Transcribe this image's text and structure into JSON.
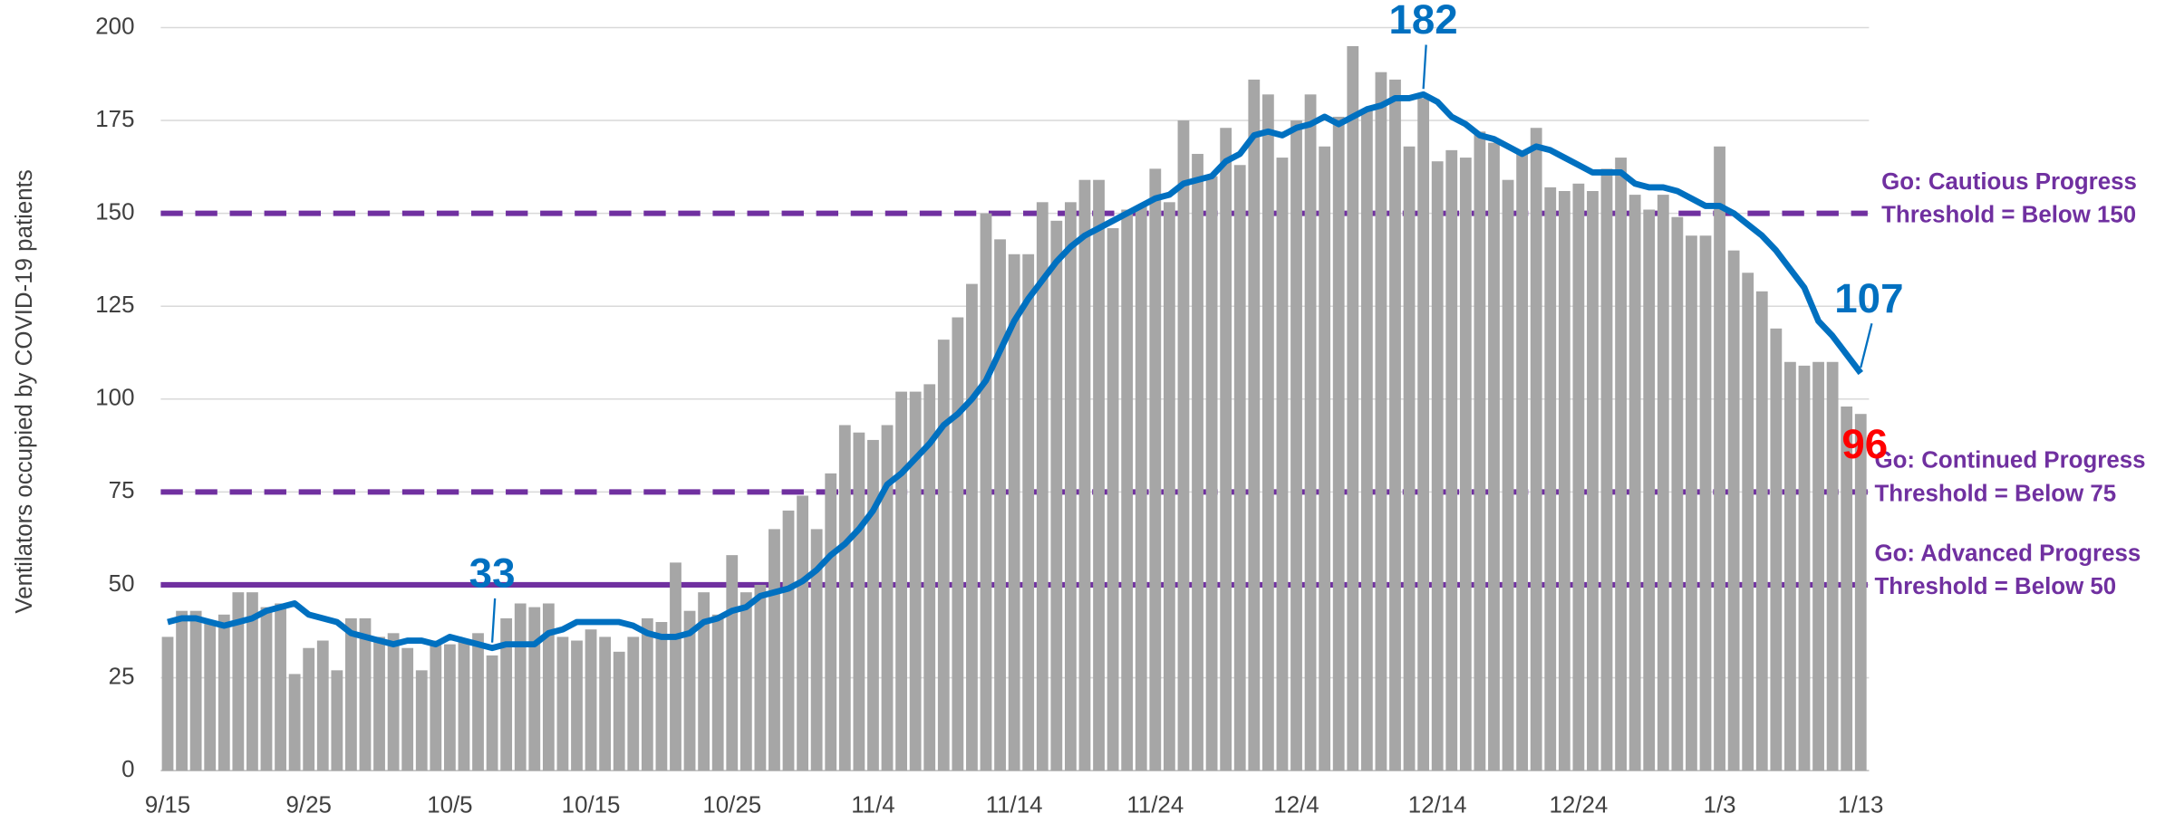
{
  "chart_data": {
    "type": "bar_line",
    "y_axis_label": "Ventilators occupied by COVID-19 patients",
    "categories": [
      "9/15",
      null,
      null,
      null,
      null,
      null,
      null,
      null,
      null,
      null,
      "9/25",
      null,
      null,
      null,
      null,
      null,
      null,
      null,
      null,
      null,
      "10/5",
      null,
      null,
      null,
      null,
      null,
      null,
      null,
      null,
      null,
      "10/15",
      null,
      null,
      null,
      null,
      null,
      null,
      null,
      null,
      null,
      "10/25",
      null,
      null,
      null,
      null,
      null,
      null,
      null,
      null,
      null,
      "11/4",
      null,
      null,
      null,
      null,
      null,
      null,
      null,
      null,
      null,
      "11/14",
      null,
      null,
      null,
      null,
      null,
      null,
      null,
      null,
      null,
      "11/24",
      null,
      null,
      null,
      null,
      null,
      null,
      null,
      null,
      null,
      "12/4",
      null,
      null,
      null,
      null,
      null,
      null,
      null,
      null,
      null,
      "12/14",
      null,
      null,
      null,
      null,
      null,
      null,
      null,
      null,
      null,
      "12/24",
      null,
      null,
      null,
      null,
      null,
      null,
      null,
      null,
      null,
      "1/3",
      null,
      null,
      null,
      null,
      null,
      null,
      null,
      null,
      null,
      "1/13"
    ],
    "series": [
      {
        "kind": "bar",
        "color": "#a6a6a6",
        "values": [
          36,
          43,
          43,
          40,
          42,
          48,
          48,
          44,
          45,
          26,
          33,
          35,
          27,
          41,
          41,
          36,
          37,
          33,
          27,
          35,
          34,
          35,
          37,
          31,
          41,
          45,
          44,
          45,
          36,
          35,
          38,
          36,
          32,
          36,
          41,
          40,
          56,
          43,
          48,
          42,
          58,
          48,
          50,
          65,
          70,
          74,
          65,
          80,
          93,
          91,
          89,
          93,
          102,
          102,
          104,
          116,
          122,
          131,
          150,
          143,
          139,
          139,
          153,
          148,
          153,
          159,
          159,
          146,
          151,
          152,
          162,
          153,
          175,
          166,
          160,
          173,
          163,
          186,
          182,
          165,
          175,
          182,
          168,
          176,
          195,
          178,
          188,
          186,
          168,
          181,
          164,
          167,
          165,
          172,
          169,
          159,
          166,
          173,
          157,
          156,
          158,
          156,
          162,
          165,
          155,
          151,
          155,
          149,
          144,
          144,
          168,
          140,
          134,
          129,
          119,
          110,
          109,
          110,
          110,
          98,
          96
        ],
        "value_labels": [
          null,
          null,
          null,
          null,
          null,
          null,
          null,
          null,
          null,
          null,
          null,
          null,
          null,
          null,
          null,
          null,
          null,
          null,
          null,
          null,
          null,
          null,
          null,
          null,
          null,
          null,
          null,
          null,
          null,
          null,
          null,
          null,
          null,
          null,
          null,
          null,
          null,
          null,
          null,
          null,
          null,
          null,
          null,
          null,
          null,
          null,
          null,
          null,
          null,
          null,
          null,
          null,
          null,
          null,
          null,
          null,
          null,
          null,
          null,
          null,
          null,
          null,
          null,
          null,
          null,
          null,
          null,
          null,
          null,
          null,
          null,
          null,
          null,
          null,
          null,
          null,
          null,
          null,
          null,
          null,
          null,
          null,
          null,
          null,
          null,
          null,
          null,
          null,
          null,
          null,
          null,
          null,
          null,
          null,
          null,
          null,
          null,
          null,
          null,
          null,
          null,
          null,
          null,
          null,
          null,
          null,
          null,
          null,
          null,
          null,
          null,
          null,
          null,
          null,
          null,
          null,
          null,
          null,
          null,
          null,
          "96"
        ],
        "label_color": "#ff0000"
      },
      {
        "kind": "line",
        "color": "#0070c0",
        "values": [
          40,
          41,
          41,
          40,
          39,
          40,
          41,
          43,
          44,
          45,
          42,
          41,
          40,
          37,
          36,
          35,
          34,
          35,
          35,
          34,
          36,
          35,
          34,
          33,
          34,
          34,
          34,
          37,
          38,
          40,
          40,
          40,
          40,
          39,
          37,
          36,
          36,
          37,
          40,
          41,
          43,
          44,
          47,
          48,
          49,
          51,
          54,
          58,
          61,
          65,
          70,
          77,
          80,
          84,
          88,
          93,
          96,
          100,
          105,
          113,
          121,
          127,
          132,
          137,
          141,
          144,
          146,
          148,
          150,
          152,
          154,
          155,
          158,
          159,
          160,
          164,
          166,
          171,
          172,
          171,
          173,
          174,
          176,
          174,
          176,
          178,
          179,
          181,
          181,
          182,
          180,
          176,
          174,
          171,
          170,
          168,
          166,
          168,
          167,
          165,
          163,
          161,
          161,
          161,
          158,
          157,
          157,
          156,
          154,
          152,
          152,
          150,
          147,
          144,
          140,
          135,
          130,
          121,
          117,
          112,
          107
        ],
        "value_labels": [
          null,
          null,
          null,
          null,
          null,
          null,
          null,
          null,
          null,
          null,
          null,
          null,
          null,
          null,
          null,
          null,
          null,
          null,
          null,
          null,
          null,
          null,
          null,
          "33",
          null,
          null,
          null,
          null,
          null,
          null,
          null,
          null,
          null,
          null,
          null,
          null,
          null,
          null,
          null,
          null,
          null,
          null,
          null,
          null,
          null,
          null,
          null,
          null,
          null,
          null,
          null,
          null,
          null,
          null,
          null,
          null,
          null,
          null,
          null,
          null,
          null,
          null,
          null,
          null,
          null,
          null,
          null,
          null,
          null,
          null,
          null,
          null,
          null,
          null,
          null,
          null,
          null,
          null,
          null,
          null,
          null,
          null,
          null,
          null,
          null,
          null,
          null,
          null,
          null,
          "182",
          null,
          null,
          null,
          null,
          null,
          null,
          null,
          null,
          null,
          null,
          null,
          null,
          null,
          null,
          null,
          null,
          null,
          null,
          null,
          null,
          null,
          null,
          null,
          null,
          null,
          null,
          null,
          null,
          null,
          null,
          "107"
        ],
        "label_color": "#0070c0"
      }
    ],
    "thresholds": [
      {
        "value": 150,
        "style": "dashed",
        "color": "#7030a0",
        "label": [
          "Go: Cautious Progress",
          "Threshold = Below 150"
        ]
      },
      {
        "value": 75,
        "style": "dashed",
        "color": "#7030a0",
        "label": [
          "Go: Continued Progress",
          "Threshold = Below 75"
        ]
      },
      {
        "value": 50,
        "style": "solid",
        "color": "#7030a0",
        "label": [
          "Go: Advanced Progress",
          "Threshold = Below 50"
        ]
      }
    ],
    "ylim": [
      0,
      200
    ],
    "yticks": [
      0,
      25,
      50,
      75,
      100,
      125,
      150,
      175,
      200
    ],
    "grid": true
  }
}
